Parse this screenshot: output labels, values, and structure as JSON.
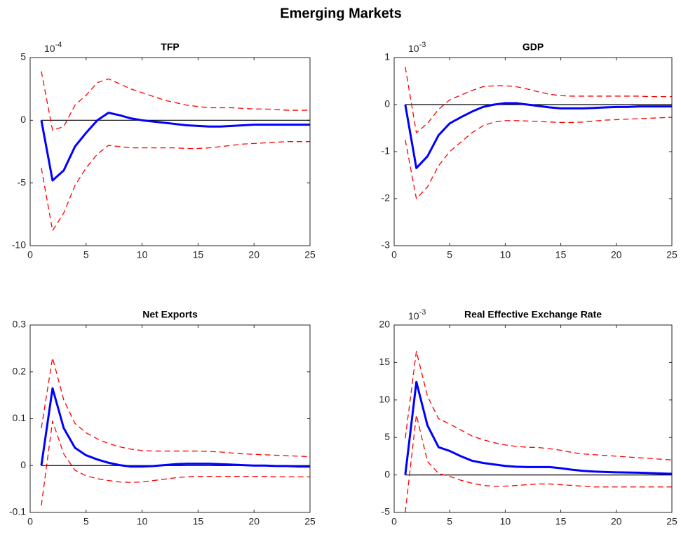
{
  "title": "Emerging Markets",
  "chart_data": [
    {
      "type": "line",
      "title": "TFP",
      "y_scale_base": "10",
      "y_scale_power": "-4",
      "x": [
        1,
        2,
        3,
        4,
        5,
        6,
        7,
        8,
        9,
        10,
        11,
        12,
        13,
        14,
        15,
        16,
        17,
        18,
        19,
        20,
        21,
        22,
        23,
        24,
        25
      ],
      "xlim": [
        0,
        25
      ],
      "xticks": [
        0,
        5,
        10,
        15,
        20,
        25
      ],
      "ylim": [
        -10,
        5
      ],
      "yticks": [
        -10,
        -5,
        0,
        5
      ],
      "reference_line": {
        "value": 0,
        "color": "#000000"
      },
      "series": [
        {
          "color": "#0000ff",
          "dashed": false,
          "values": [
            0,
            -4.8,
            -4.0,
            -2.1,
            -1.0,
            0.0,
            0.6,
            0.4,
            0.15,
            0.0,
            -0.1,
            -0.2,
            -0.3,
            -0.4,
            -0.45,
            -0.5,
            -0.5,
            -0.45,
            -0.4,
            -0.35,
            -0.35,
            -0.35,
            -0.35,
            -0.35,
            -0.35
          ]
        },
        {
          "color": "#ff0000",
          "dashed": true,
          "values": [
            3.9,
            -0.8,
            -0.5,
            1.2,
            2.0,
            3.0,
            3.3,
            2.9,
            2.5,
            2.2,
            1.9,
            1.6,
            1.4,
            1.2,
            1.1,
            1.0,
            1.0,
            1.0,
            0.95,
            0.9,
            0.9,
            0.85,
            0.8,
            0.8,
            0.8
          ]
        },
        {
          "color": "#ff0000",
          "dashed": true,
          "values": [
            -3.8,
            -8.8,
            -7.4,
            -5.2,
            -3.8,
            -2.7,
            -2.0,
            -2.1,
            -2.2,
            -2.2,
            -2.2,
            -2.2,
            -2.2,
            -2.25,
            -2.25,
            -2.2,
            -2.1,
            -2.0,
            -1.9,
            -1.85,
            -1.8,
            -1.75,
            -1.7,
            -1.7,
            -1.7
          ]
        }
      ]
    },
    {
      "type": "line",
      "title": "GDP",
      "y_scale_base": "10",
      "y_scale_power": "-3",
      "x": [
        1,
        2,
        3,
        4,
        5,
        6,
        7,
        8,
        9,
        10,
        11,
        12,
        13,
        14,
        15,
        16,
        17,
        18,
        19,
        20,
        21,
        22,
        23,
        24,
        25
      ],
      "xlim": [
        0,
        25
      ],
      "xticks": [
        0,
        5,
        10,
        15,
        20,
        25
      ],
      "ylim": [
        -3,
        1
      ],
      "yticks": [
        -3,
        -2,
        -1,
        0,
        1
      ],
      "reference_line": {
        "value": 0,
        "color": "#000000"
      },
      "series": [
        {
          "color": "#0000ff",
          "dashed": false,
          "values": [
            0,
            -1.35,
            -1.1,
            -0.65,
            -0.4,
            -0.27,
            -0.15,
            -0.05,
            0.0,
            0.03,
            0.03,
            0.0,
            -0.03,
            -0.06,
            -0.08,
            -0.08,
            -0.08,
            -0.07,
            -0.06,
            -0.05,
            -0.05,
            -0.04,
            -0.04,
            -0.04,
            -0.04
          ]
        },
        {
          "color": "#ff0000",
          "dashed": true,
          "values": [
            0.8,
            -0.6,
            -0.4,
            -0.1,
            0.1,
            0.2,
            0.3,
            0.38,
            0.4,
            0.4,
            0.38,
            0.33,
            0.27,
            0.22,
            0.19,
            0.18,
            0.18,
            0.18,
            0.18,
            0.18,
            0.18,
            0.18,
            0.17,
            0.17,
            0.17
          ]
        },
        {
          "color": "#ff0000",
          "dashed": true,
          "values": [
            -0.75,
            -2.0,
            -1.75,
            -1.3,
            -1.0,
            -0.8,
            -0.6,
            -0.45,
            -0.37,
            -0.34,
            -0.34,
            -0.35,
            -0.36,
            -0.37,
            -0.38,
            -0.38,
            -0.37,
            -0.35,
            -0.33,
            -0.32,
            -0.31,
            -0.3,
            -0.29,
            -0.28,
            -0.27
          ]
        }
      ]
    },
    {
      "type": "line",
      "title": "Net Exports",
      "x": [
        1,
        2,
        3,
        4,
        5,
        6,
        7,
        8,
        9,
        10,
        11,
        12,
        13,
        14,
        15,
        16,
        17,
        18,
        19,
        20,
        21,
        22,
        23,
        24,
        25
      ],
      "xlim": [
        0,
        25
      ],
      "xticks": [
        0,
        5,
        10,
        15,
        20,
        25
      ],
      "ylim": [
        -0.1,
        0.3
      ],
      "yticks": [
        -0.1,
        0,
        0.1,
        0.2,
        0.3
      ],
      "reference_line": {
        "value": 0,
        "color": "#000000"
      },
      "series": [
        {
          "color": "#0000ff",
          "dashed": false,
          "values": [
            0,
            0.165,
            0.08,
            0.038,
            0.022,
            0.013,
            0.006,
            0.001,
            -0.002,
            -0.002,
            -0.001,
            0.001,
            0.003,
            0.004,
            0.004,
            0.004,
            0.003,
            0.002,
            0.001,
            0.0,
            0.0,
            -0.001,
            -0.001,
            -0.002,
            -0.002
          ]
        },
        {
          "color": "#ff0000",
          "dashed": true,
          "values": [
            0.08,
            0.23,
            0.14,
            0.09,
            0.07,
            0.057,
            0.047,
            0.04,
            0.035,
            0.032,
            0.031,
            0.031,
            0.031,
            0.031,
            0.031,
            0.03,
            0.029,
            0.027,
            0.025,
            0.024,
            0.023,
            0.022,
            0.021,
            0.02,
            0.019
          ]
        },
        {
          "color": "#ff0000",
          "dashed": true,
          "values": [
            -0.085,
            0.095,
            0.025,
            -0.01,
            -0.022,
            -0.028,
            -0.032,
            -0.035,
            -0.036,
            -0.035,
            -0.032,
            -0.029,
            -0.026,
            -0.024,
            -0.023,
            -0.023,
            -0.023,
            -0.023,
            -0.023,
            -0.023,
            -0.023,
            -0.024,
            -0.024,
            -0.024,
            -0.024
          ]
        }
      ]
    },
    {
      "type": "line",
      "title": "Real Effective Exchange Rate",
      "y_scale_base": "10",
      "y_scale_power": "-3",
      "x": [
        1,
        2,
        3,
        4,
        5,
        6,
        7,
        8,
        9,
        10,
        11,
        12,
        13,
        14,
        15,
        16,
        17,
        18,
        19,
        20,
        21,
        22,
        23,
        24,
        25
      ],
      "xlim": [
        0,
        25
      ],
      "xticks": [
        0,
        5,
        10,
        15,
        20,
        25
      ],
      "ylim": [
        -5,
        20
      ],
      "yticks": [
        -5,
        0,
        5,
        10,
        15,
        20
      ],
      "reference_line": {
        "value": 0,
        "color": "#000000"
      },
      "series": [
        {
          "color": "#0000ff",
          "dashed": false,
          "values": [
            0,
            12.4,
            6.6,
            3.7,
            3.2,
            2.5,
            1.9,
            1.6,
            1.4,
            1.2,
            1.1,
            1.05,
            1.05,
            1.05,
            0.9,
            0.7,
            0.55,
            0.45,
            0.4,
            0.35,
            0.33,
            0.3,
            0.25,
            0.2,
            0.15
          ]
        },
        {
          "color": "#ff0000",
          "dashed": true,
          "values": [
            4.9,
            16.5,
            10.5,
            7.5,
            6.8,
            6.0,
            5.2,
            4.7,
            4.3,
            4.0,
            3.8,
            3.7,
            3.65,
            3.5,
            3.3,
            3.0,
            2.8,
            2.7,
            2.6,
            2.5,
            2.4,
            2.3,
            2.2,
            2.1,
            2.0
          ]
        },
        {
          "color": "#ff0000",
          "dashed": true,
          "values": [
            -5.0,
            8.0,
            1.8,
            0.2,
            -0.2,
            -0.7,
            -1.1,
            -1.4,
            -1.5,
            -1.5,
            -1.4,
            -1.3,
            -1.2,
            -1.2,
            -1.3,
            -1.4,
            -1.5,
            -1.6,
            -1.6,
            -1.6,
            -1.6,
            -1.6,
            -1.6,
            -1.6,
            -1.6
          ]
        }
      ]
    }
  ]
}
